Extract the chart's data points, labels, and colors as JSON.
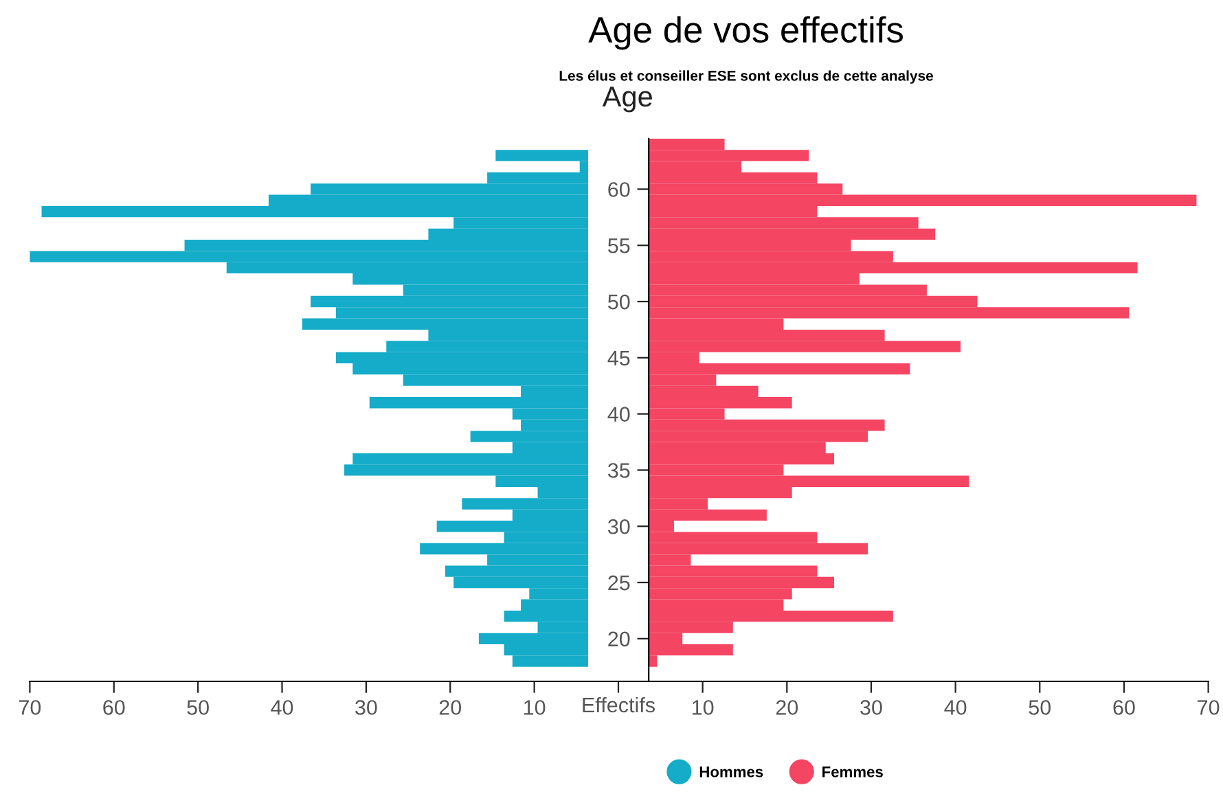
{
  "chart_data": [
    {
      "type": "bar",
      "orientation": "horizontal",
      "x": [
        64,
        63,
        62,
        61,
        60,
        59,
        58,
        57,
        56,
        55,
        54,
        53,
        52,
        51,
        50,
        49,
        48,
        47,
        46,
        45,
        44,
        43,
        42,
        41,
        40,
        39,
        38,
        37,
        36,
        35,
        34,
        33,
        32,
        31,
        30,
        29,
        28,
        27,
        26,
        25,
        24,
        23,
        22,
        21,
        20,
        19,
        18
      ],
      "series": [
        {
          "name": "Hommes",
          "color": "#14acc9",
          "values": [
            null,
            11,
            1,
            12,
            33,
            38,
            65,
            16,
            19,
            48,
            68,
            43,
            28,
            22,
            33,
            30,
            34,
            19,
            24,
            30,
            28,
            22,
            8,
            26,
            9,
            8,
            14,
            9,
            28,
            29,
            11,
            6,
            15,
            9,
            18,
            10,
            20,
            12,
            17,
            16,
            7,
            8,
            10,
            6,
            13,
            10,
            9
          ],
          "base": [
            null,
            3.6,
            3.6,
            3.6,
            3.6,
            3.6,
            3.6,
            3.6,
            3.6,
            3.6,
            3.6,
            3.6,
            3.6,
            3.6,
            3.6,
            3.6,
            3.6,
            3.6,
            3.6,
            3.6,
            3.6,
            3.6,
            3.6,
            3.6,
            3.6,
            3.6,
            3.6,
            3.6,
            3.6,
            3.6,
            3.6,
            3.6,
            3.6,
            3.6,
            3.6,
            3.6,
            3.6,
            3.6,
            3.6,
            3.6,
            3.6,
            3.6,
            3.6,
            3.6,
            3.6,
            3.6,
            3.6
          ]
        }
      ],
      "xlim": [
        70,
        0
      ],
      "xticks": [
        70,
        60,
        50,
        40,
        30,
        20,
        10
      ],
      "tick_labels": "x",
      "legend": "bottom",
      "grid": false
    },
    {
      "type": "bar",
      "orientation": "horizontal",
      "title": "Age de vos effectifs",
      "subtitle": "Les élus et conseiller ESE sont exclus de cette analyse",
      "ylabel": "Age",
      "xlabel": "Effectifs",
      "x": [
        18,
        19,
        20,
        21,
        22,
        23,
        24,
        25,
        26,
        27,
        28,
        29,
        30,
        31,
        32,
        33,
        34,
        35,
        36,
        37,
        38,
        39,
        40,
        41,
        42,
        43,
        44,
        45,
        46,
        47,
        48,
        49,
        50,
        51,
        52,
        53,
        54,
        55,
        56,
        57,
        58,
        59,
        60,
        61,
        62,
        63,
        64
      ],
      "series": [
        {
          "name": "Femmes",
          "color": "#f44563",
          "values": [
            1,
            10,
            4,
            10,
            29,
            16,
            17,
            22,
            20,
            5,
            26,
            20,
            3,
            14,
            7,
            17,
            38,
            16,
            22,
            21,
            26,
            28,
            9,
            17,
            13,
            8,
            31,
            6,
            37,
            28,
            16,
            57,
            39,
            33,
            25,
            58,
            29,
            24,
            34,
            32,
            20,
            65,
            23,
            20,
            11,
            19,
            9
          ],
          "base": [
            3.6,
            3.6,
            3.6,
            3.6,
            3.6,
            3.6,
            3.6,
            3.6,
            3.6,
            3.6,
            3.6,
            3.6,
            3.6,
            3.6,
            3.6,
            3.6,
            3.6,
            3.6,
            3.6,
            3.6,
            3.6,
            3.6,
            3.6,
            3.6,
            3.6,
            3.6,
            3.6,
            3.6,
            3.6,
            3.6,
            3.6,
            3.6,
            3.6,
            3.6,
            3.6,
            3.6,
            3.6,
            3.6,
            3.6,
            3.6,
            3.6,
            3.6,
            3.6,
            3.6,
            3.6,
            3.6,
            3.6
          ]
        }
      ],
      "xlim": [
        0,
        70
      ],
      "xticks": [
        {
          "value": 0,
          "label": null
        },
        10,
        20,
        30,
        40,
        50,
        60,
        70
      ],
      "ylim": [
        16.2,
        64.5
      ],
      "yticks": [
        20,
        25,
        30,
        35,
        40,
        45,
        50,
        55,
        60
      ],
      "legend": "bottom",
      "grid": false
    }
  ]
}
